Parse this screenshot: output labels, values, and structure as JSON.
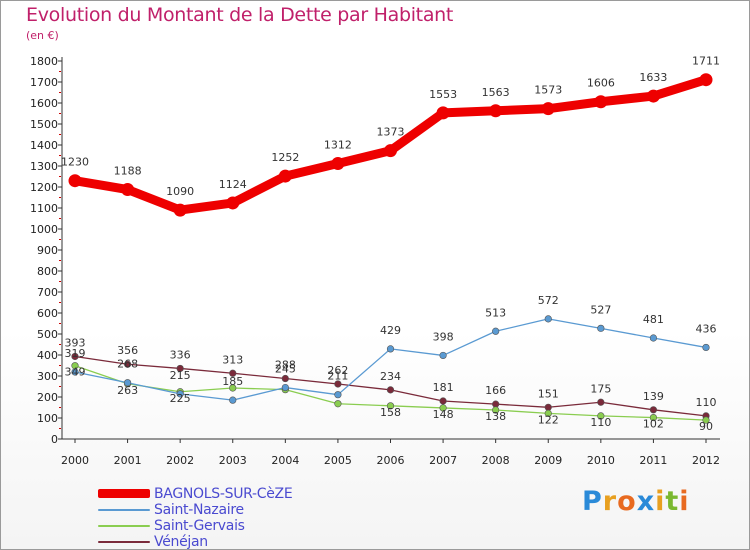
{
  "title": "Evolution du Montant de la Dette par Habitant",
  "unit": "(en €)",
  "logo": {
    "letters": [
      "P",
      "r",
      "o",
      "x",
      "i",
      "t",
      "i"
    ],
    "colors": [
      "#2a8ad8",
      "#e8a020",
      "#e86a20",
      "#2a8ad8",
      "#e8a020",
      "#7ab830",
      "#e86a20"
    ]
  },
  "chart_data": {
    "type": "line",
    "x": [
      "2000",
      "2001",
      "2002",
      "2003",
      "2004",
      "2005",
      "2006",
      "2007",
      "2008",
      "2009",
      "2010",
      "2011",
      "2012"
    ],
    "ylim": [
      0,
      1800
    ],
    "yticks": [
      0,
      100,
      200,
      300,
      400,
      500,
      600,
      700,
      800,
      900,
      1000,
      1100,
      1200,
      1300,
      1400,
      1500,
      1600,
      1700,
      1800
    ],
    "grid": false,
    "legend_position": "bottom-left",
    "series": [
      {
        "name": "BAGNOLS-SUR-CèZE",
        "color": "#ee0000",
        "values": [
          1230,
          1188,
          1090,
          1124,
          1252,
          1312,
          1373,
          1553,
          1563,
          1573,
          1606,
          1633,
          1711
        ],
        "labels": [
          "1230",
          "1188",
          "1090",
          "1124",
          "1252",
          "1312",
          "1373",
          "1553",
          "1563",
          "1573",
          "1606",
          "1633",
          "1711"
        ]
      },
      {
        "name": "Saint-Nazaire",
        "color": "#5a9ad2",
        "values": [
          319,
          268,
          215,
          185,
          245,
          211,
          429,
          398,
          513,
          572,
          527,
          481,
          436
        ],
        "labels": [
          "319",
          "268",
          "215",
          "185",
          "245",
          "211",
          "429",
          "398",
          "513",
          "572",
          "527",
          "481",
          "436"
        ]
      },
      {
        "name": "Saint-Gervais",
        "color": "#8acd50",
        "values": [
          349,
          263,
          225,
          243,
          235,
          168,
          158,
          148,
          138,
          122,
          110,
          102,
          90
        ],
        "labels": [
          "349",
          "263",
          "225",
          "",
          "",
          "",
          "158",
          "148",
          "138",
          "122",
          "110",
          "102",
          "90"
        ]
      },
      {
        "name": "Vénéjan",
        "color": "#7a2a3a",
        "values": [
          393,
          356,
          336,
          313,
          288,
          262,
          234,
          181,
          166,
          151,
          175,
          139,
          110
        ],
        "labels": [
          "393",
          "356",
          "336",
          "313",
          "288",
          "262",
          "234",
          "181",
          "166",
          "151",
          "175",
          "139",
          "110"
        ]
      }
    ]
  }
}
